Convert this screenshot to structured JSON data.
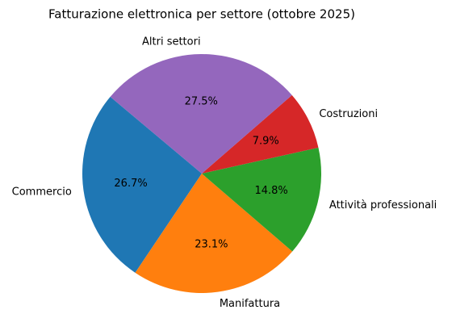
{
  "chart_data": {
    "type": "pie",
    "title": "Fatturazione elettronica per settore (ottobre 2025)",
    "categories": [
      "Commercio",
      "Manifattura",
      "Attività professionali",
      "Costruzioni",
      "Altri settori"
    ],
    "values": [
      26.7,
      23.1,
      14.8,
      7.9,
      27.5
    ],
    "value_labels": [
      "26.7%",
      "23.1%",
      "14.8%",
      "7.9%",
      "27.5%"
    ],
    "colors": [
      "#1f77b4",
      "#ff7f0e",
      "#2ca02c",
      "#d62728",
      "#9467bd"
    ]
  }
}
